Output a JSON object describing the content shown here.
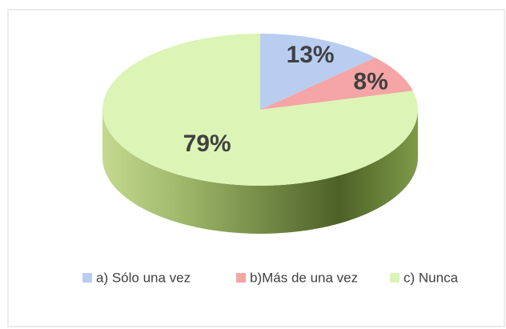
{
  "chart_data": {
    "type": "pie",
    "categories": [
      "a) Sólo una vez",
      "b)Más de una vez",
      "c) Nunca"
    ],
    "values": [
      13,
      8,
      79
    ],
    "value_labels": [
      "13%",
      "8%",
      "79%"
    ],
    "colors": [
      "#b8cdf0",
      "#f5a5a5",
      "#dcf4b6"
    ],
    "legend": "bottom"
  }
}
